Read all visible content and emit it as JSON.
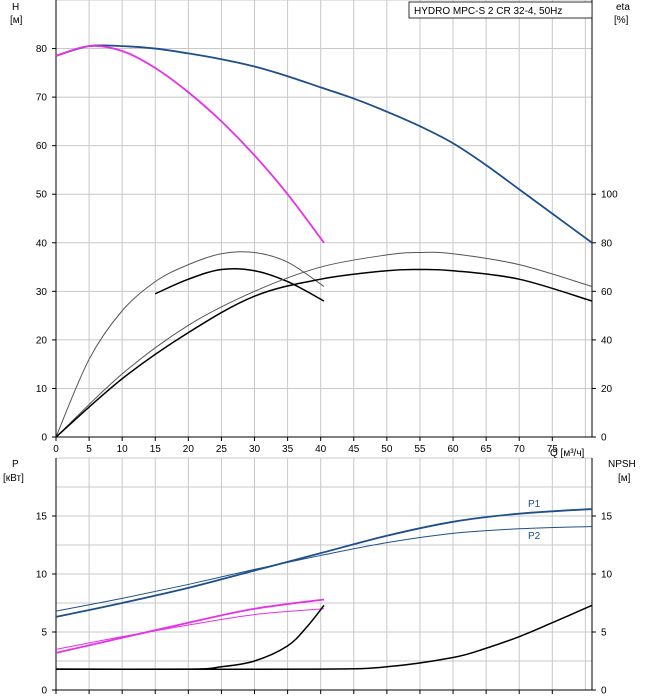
{
  "chart_data": [
    {
      "type": "line",
      "title": "HYDRO MPC-S 2 CR 32-4, 50Hz",
      "ylabel": "H",
      "yunit": "[м]",
      "y2label": "eta",
      "y2unit": "[%]",
      "xlabel": "Q [м³/ч]",
      "xlim": [
        0,
        81
      ],
      "ylim": [
        0,
        90
      ],
      "y2lim": [
        0,
        180
      ],
      "xticks": [
        "0",
        "5",
        "10",
        "15",
        "20",
        "25",
        "30",
        "35",
        "40",
        "45",
        "50",
        "55",
        "60",
        "65",
        "70",
        "75"
      ],
      "yticks": [
        "0",
        "10",
        "20",
        "30",
        "40",
        "50",
        "60",
        "70",
        "80"
      ],
      "y2ticks": [
        "0",
        "20",
        "40",
        "60",
        "80",
        "100"
      ],
      "grid": true,
      "series": [
        {
          "color": "#1e4f8c",
          "width": 1.8,
          "axis": "left",
          "x": [
            0,
            5,
            10,
            15,
            20,
            25,
            30,
            35,
            40,
            45,
            50,
            55,
            60,
            65,
            70,
            75,
            81
          ],
          "y": [
            78.5,
            80.5,
            80.5,
            80,
            79,
            77.8,
            76.3,
            74.3,
            72,
            69.7,
            67,
            64,
            60.5,
            56,
            51,
            46,
            40
          ]
        },
        {
          "color": "#e632e6",
          "width": 1.8,
          "axis": "left",
          "x": [
            0,
            5,
            10,
            15,
            20,
            25,
            30,
            35,
            40.5
          ],
          "y": [
            78.5,
            80.5,
            79.5,
            76,
            71,
            65,
            58,
            50,
            40
          ]
        },
        {
          "color": "#555555",
          "width": 1,
          "axis": "right",
          "x": [
            0,
            5,
            10,
            15,
            20,
            25,
            30,
            35,
            40.5
          ],
          "y": [
            0,
            32,
            52,
            64,
            71,
            75.5,
            76,
            72,
            62
          ]
        },
        {
          "color": "#000000",
          "width": 1.5,
          "axis": "right",
          "x": [
            15,
            20,
            25,
            30,
            35,
            40.5
          ],
          "y": [
            59,
            65,
            69,
            68.5,
            64,
            56
          ]
        },
        {
          "color": "#555555",
          "width": 1,
          "axis": "right",
          "x": [
            0,
            10,
            20,
            30,
            40,
            50,
            55,
            60,
            70,
            81
          ],
          "y": [
            0,
            26,
            46,
            60,
            70,
            75,
            76,
            75.5,
            71,
            62
          ]
        },
        {
          "color": "#000000",
          "width": 1.5,
          "axis": "right",
          "x": [
            0,
            10,
            20,
            30,
            40,
            50,
            55,
            60,
            70,
            81
          ],
          "y": [
            0,
            24,
            43,
            58,
            65,
            68.5,
            69,
            68.5,
            65,
            56
          ]
        }
      ]
    },
    {
      "type": "line",
      "ylabel": "P",
      "yunit": "[кВт]",
      "y2label": "NPSH",
      "y2unit": "[м]",
      "xlim": [
        0,
        81
      ],
      "ylim": [
        0,
        20
      ],
      "yticks": [
        "0",
        "5",
        "10",
        "15"
      ],
      "y2ticks": [
        "0",
        "5",
        "10",
        "15"
      ],
      "grid": true,
      "series": [
        {
          "name": "P1",
          "color": "#1e4f8c",
          "width": 1.8,
          "axis": "left",
          "x": [
            0,
            10,
            20,
            30,
            40,
            50,
            60,
            70,
            81
          ],
          "y": [
            6.3,
            7.5,
            8.8,
            10.3,
            11.8,
            13.3,
            14.5,
            15.2,
            15.6
          ]
        },
        {
          "name": "P2",
          "color": "#1e4f8c",
          "width": 1,
          "axis": "left",
          "x": [
            0,
            10,
            20,
            30,
            40,
            50,
            60,
            70,
            81
          ],
          "y": [
            6.8,
            7.9,
            9.1,
            10.4,
            11.6,
            12.7,
            13.5,
            13.9,
            14.1
          ]
        },
        {
          "color": "#e632e6",
          "width": 1.8,
          "axis": "left",
          "x": [
            0,
            10,
            20,
            30,
            40.5
          ],
          "y": [
            3.2,
            4.5,
            5.8,
            7.0,
            7.8
          ]
        },
        {
          "color": "#e632e6",
          "width": 1,
          "axis": "left",
          "x": [
            0,
            10,
            20,
            30,
            40.5
          ],
          "y": [
            3.5,
            4.6,
            5.6,
            6.5,
            7.0
          ]
        },
        {
          "color": "#000000",
          "width": 1.5,
          "axis": "right",
          "x": [
            0,
            20,
            25,
            30,
            35,
            38,
            40.5
          ],
          "y": [
            1.8,
            1.8,
            2.0,
            2.5,
            3.8,
            5.5,
            7.3
          ]
        },
        {
          "color": "#000000",
          "width": 1.5,
          "axis": "right",
          "x": [
            0,
            40,
            50,
            60,
            65,
            70,
            75,
            81
          ],
          "y": [
            1.8,
            1.8,
            2.0,
            2.8,
            3.6,
            4.6,
            5.8,
            7.3
          ]
        }
      ]
    }
  ]
}
